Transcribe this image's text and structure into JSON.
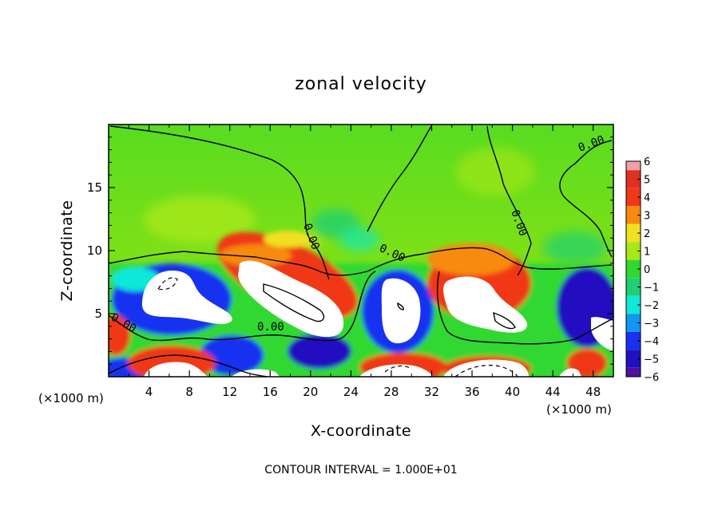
{
  "chart_data": {
    "type": "heatmap",
    "title": "zonal velocity",
    "xlabel": "X-coordinate",
    "ylabel": "Z-coordinate",
    "x_unit_left": "(×1000 m)",
    "x_unit_right": "(×1000 m)",
    "xlim": [
      0,
      50
    ],
    "ylim": [
      0,
      20
    ],
    "x_ticks": [
      "4",
      "8",
      "12",
      "16",
      "20",
      "24",
      "28",
      "32",
      "36",
      "40",
      "44",
      "48"
    ],
    "y_ticks": [
      "5",
      "10",
      "15"
    ],
    "colorbar": {
      "labels": [
        "6",
        "5",
        "4",
        "3",
        "2",
        "1",
        "0",
        "−1",
        "−2",
        "−3",
        "−4",
        "−5",
        "−6"
      ],
      "colors": [
        "#f0a0a8",
        "#e03020",
        "#f03818",
        "#f88a10",
        "#f0e020",
        "#a8e818",
        "#30d830",
        "#20d070",
        "#10e8d8",
        "#1098f0",
        "#1830f0",
        "#2010c0",
        "#5010a0"
      ]
    },
    "contour_labels": [
      "0.00",
      "0.00",
      "0.00",
      "0.00",
      "0.00",
      "0.00"
    ],
    "footnote": "CONTOUR INTERVAL = 1.000E+01"
  }
}
